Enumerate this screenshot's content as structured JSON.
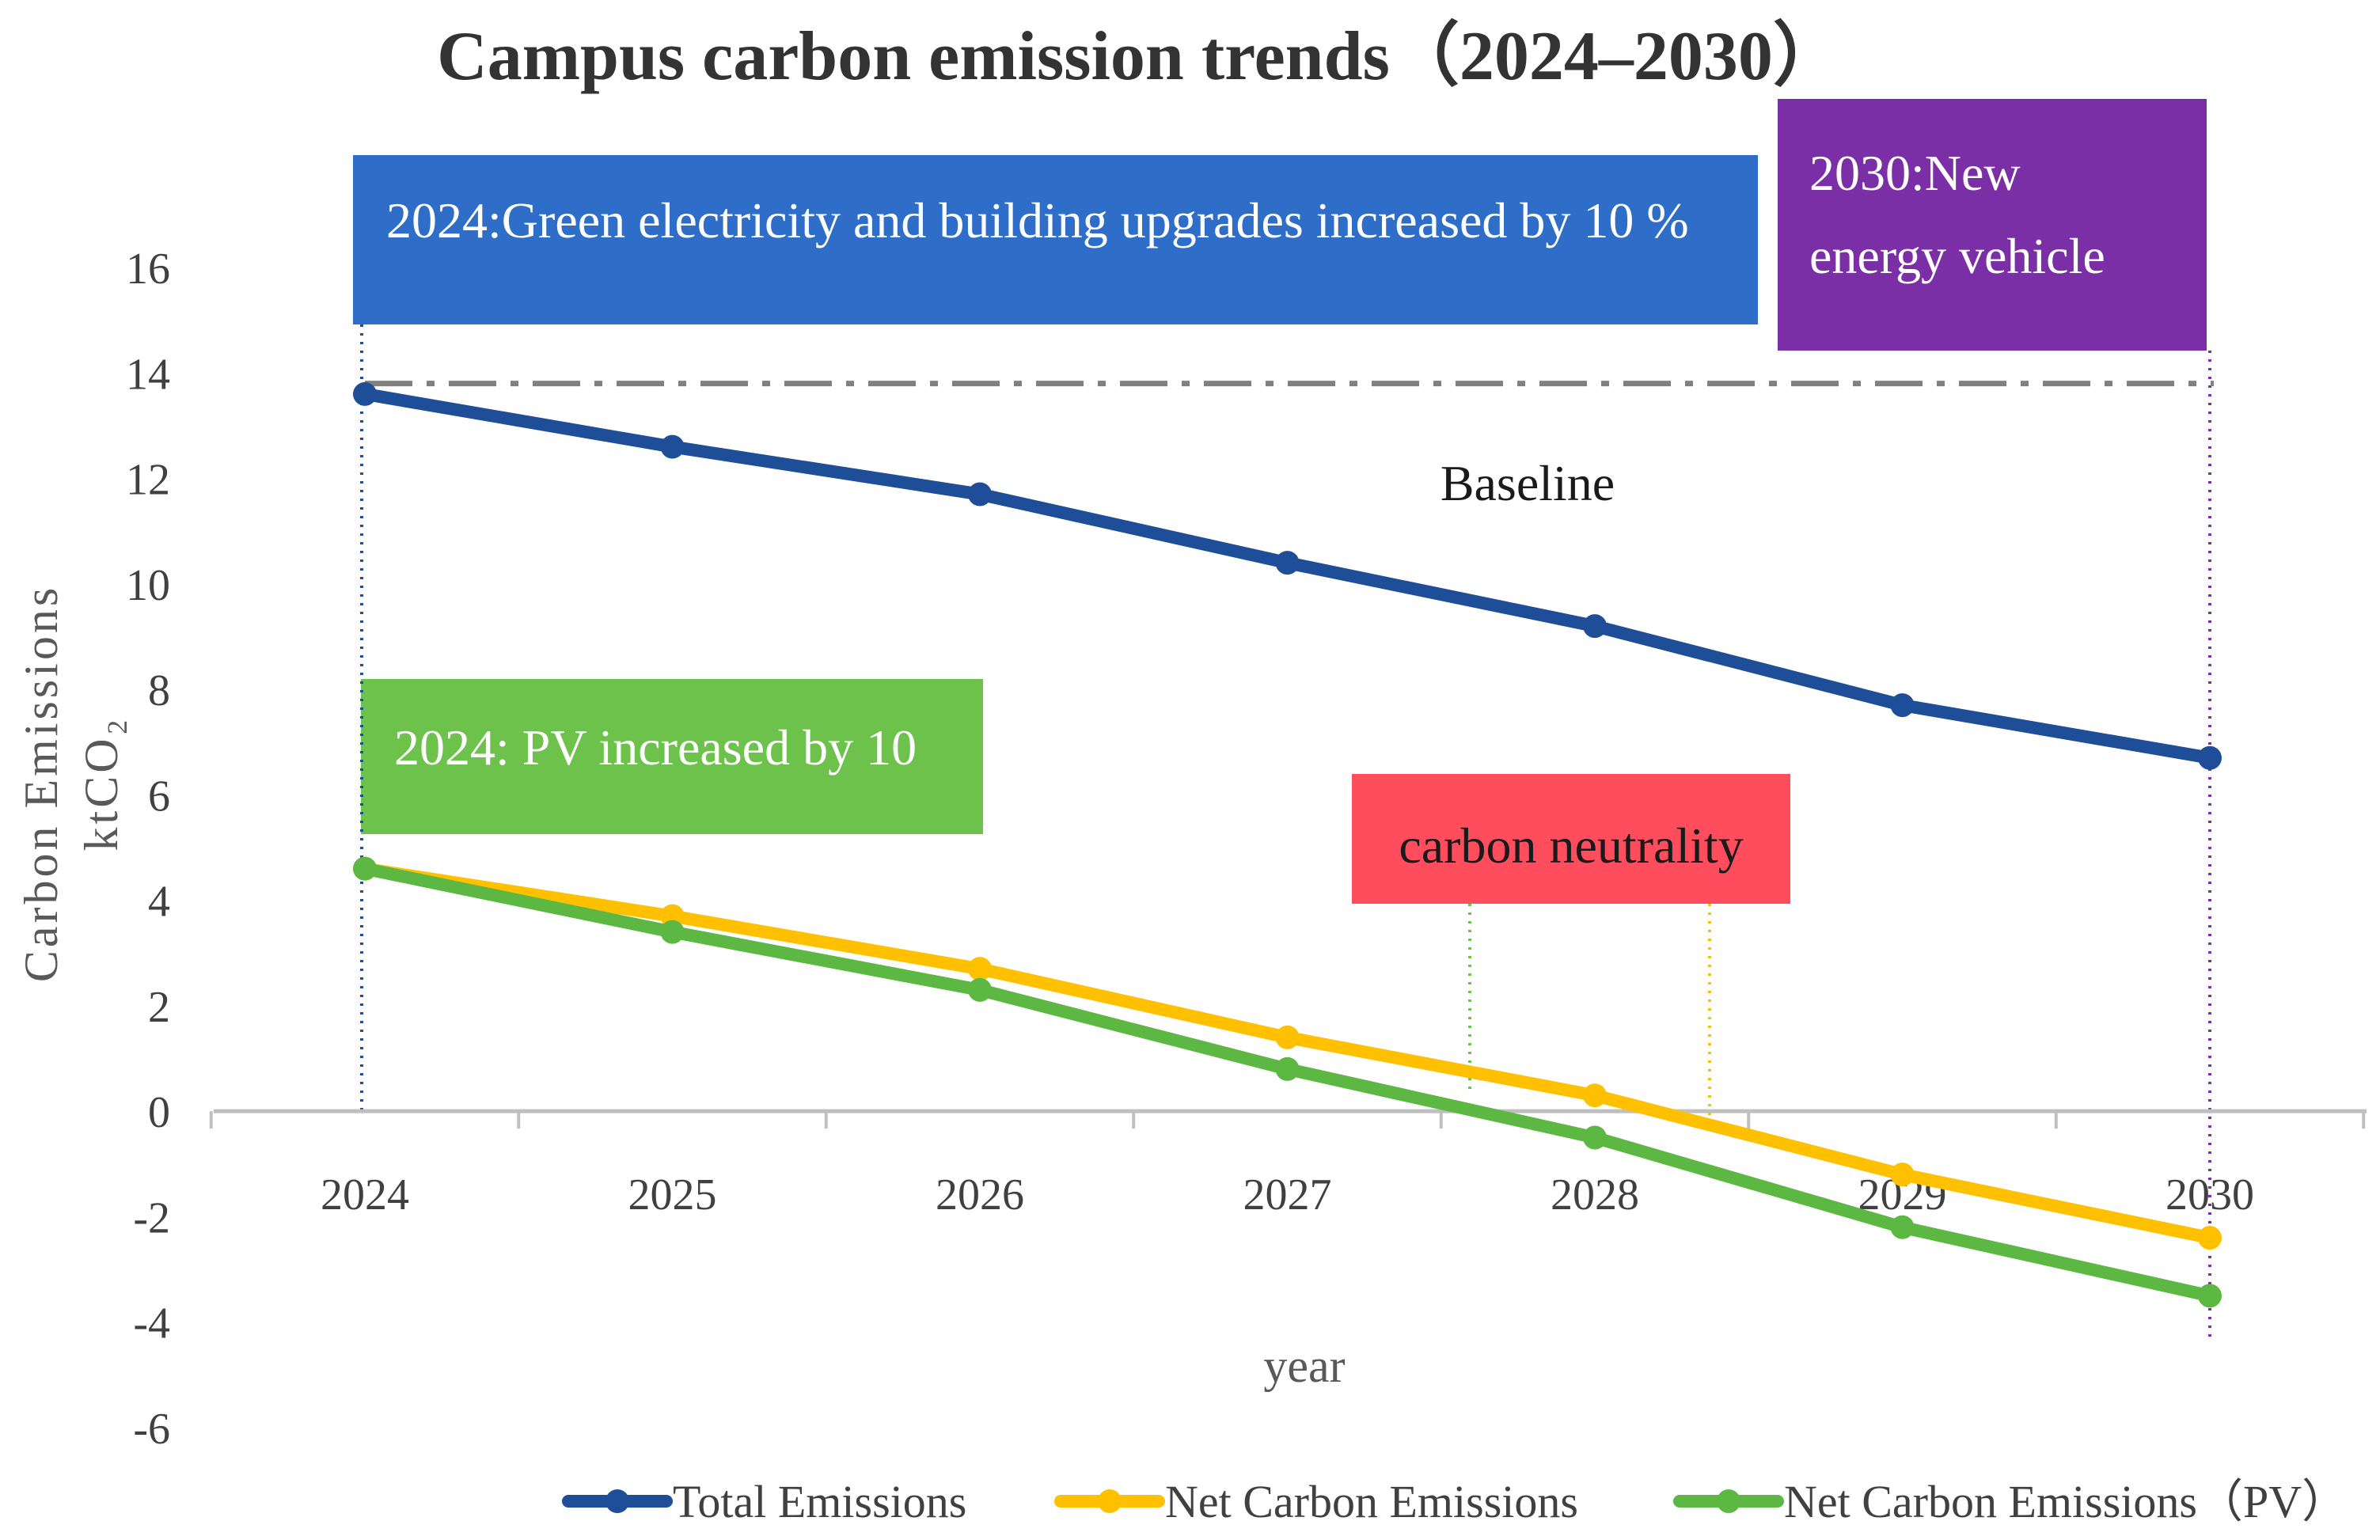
{
  "chart_data": {
    "type": "line",
    "title": "Campus carbon emission trends（2024–2030）",
    "xlabel": "year",
    "ylabel": "Carbon Emissions",
    "ylabel_unit": "ktCO₂",
    "ylim": [
      -6,
      16
    ],
    "yticks": [
      "16",
      "14",
      "12",
      "10",
      "8",
      "6",
      "4",
      "2",
      "0",
      "-2",
      "-4",
      "-6"
    ],
    "categories": [
      "2024",
      "2025",
      "2026",
      "2027",
      "2028",
      "2029",
      "2030"
    ],
    "grid": false,
    "legend_position": "bottom",
    "series": [
      {
        "name": "Total Emissions",
        "color": "#1f4e99",
        "values": [
          13.6,
          12.6,
          11.7,
          10.4,
          9.2,
          7.7,
          6.7
        ]
      },
      {
        "name": "Net Carbon Emissions",
        "color": "#ffc000",
        "values": [
          4.6,
          3.7,
          2.7,
          1.4,
          0.3,
          -1.2,
          -2.4
        ]
      },
      {
        "name": "Net Carbon Emissions（PV）",
        "color": "#5cb843",
        "values": [
          4.6,
          3.4,
          2.3,
          0.8,
          -0.5,
          -2.2,
          -3.5
        ]
      }
    ],
    "baseline": {
      "label": "Baseline",
      "value": 13.8,
      "color": "#808080"
    },
    "annotations": [
      {
        "id": "green-electricity",
        "text": "2024:Green electricity and building upgrades increased by 10 %",
        "color": "#2e6ec8"
      },
      {
        "id": "new-energy-vehicle",
        "lines": [
          "2030:New",
          "energy vehicle"
        ],
        "color": "#7b2fa6"
      },
      {
        "id": "pv-increase",
        "text": "2024: PV increased by 10",
        "color": "#6cc24a"
      },
      {
        "id": "carbon-neutrality",
        "text": "carbon neutrality",
        "color": "#ff4d5e"
      }
    ]
  }
}
